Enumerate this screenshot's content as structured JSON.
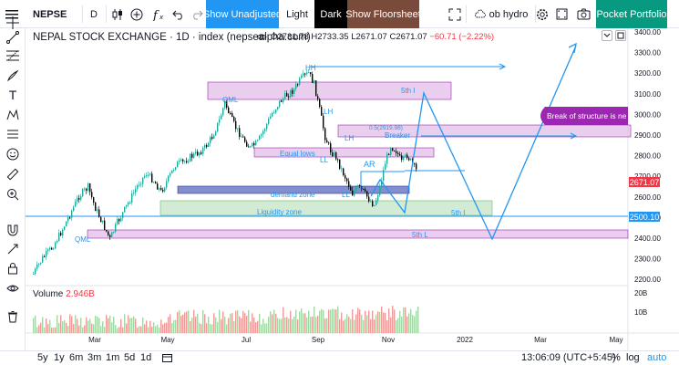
{
  "toolbar": {
    "symbol": "NEPSE",
    "interval": "D",
    "show_unadjusted": "Show Unadjusted",
    "light": "Light",
    "dark": "Dark",
    "show_floorsheet": "Show Floorsheet",
    "indicator_name": "ob hydro",
    "pocket_portfolio": "Pocket Portfolio"
  },
  "header": {
    "title": "NEPAL STOCK EXCHANGE · 1D · index (nepsealpha.com)",
    "ohlc": "O2731.78 H2733.35 L2671.07 C2671.07",
    "change": "−60.71 (−2.22%)"
  },
  "volume": {
    "label": "Volume",
    "value": "2.946B"
  },
  "price_axis": {
    "ticks": [
      "3400.00",
      "3300.00",
      "3200.00",
      "3100.00",
      "3000.00",
      "2900.00",
      "2800.00",
      "2700.00",
      "2600.00",
      "2500.00",
      "2400.00",
      "2300.00",
      "2200.00"
    ],
    "last_price": "2671.07",
    "line_price": "2500.10"
  },
  "volume_axis": {
    "ticks": [
      "20B",
      "10B"
    ]
  },
  "time_axis": {
    "ticks": [
      "Mar",
      "May",
      "Jul",
      "Sep",
      "Nov",
      "2022",
      "Mar",
      "May"
    ]
  },
  "annotations": {
    "hh": "HH",
    "qml_top": "QML",
    "qml_bottom": "QML",
    "lh1": "LH",
    "lh2": "LH",
    "ll_dl": "LL",
    "ll": "LL",
    "ar": "AR",
    "breaker": "Breaker",
    "fib": "0.5(2919.98)",
    "equal_lows": "Equal lows",
    "demand_zone": "demand zone",
    "liquidity_zone": "Liquidity zone",
    "fifth_l_1": "5th l",
    "fifth_l_2": "5th l",
    "fifth_l_3": "5th L",
    "bos": "Break of structure is ne"
  },
  "bottom": {
    "ranges": [
      "5y",
      "1y",
      "6m",
      "3m",
      "1m",
      "5d",
      "1d"
    ],
    "clock": "13:06:09 (UTC+5:45)",
    "pct": "%",
    "log": "log",
    "auto": "auto"
  },
  "colors": {
    "up": "#26a69a",
    "down": "#000000",
    "zone_purple": "#e1bee7",
    "zone_blue": "#3f51b5",
    "zone_green": "#c8e6c9",
    "projection": "#2196f3",
    "last_price": "#f23645",
    "bos_bg": "#9c27b0"
  }
}
